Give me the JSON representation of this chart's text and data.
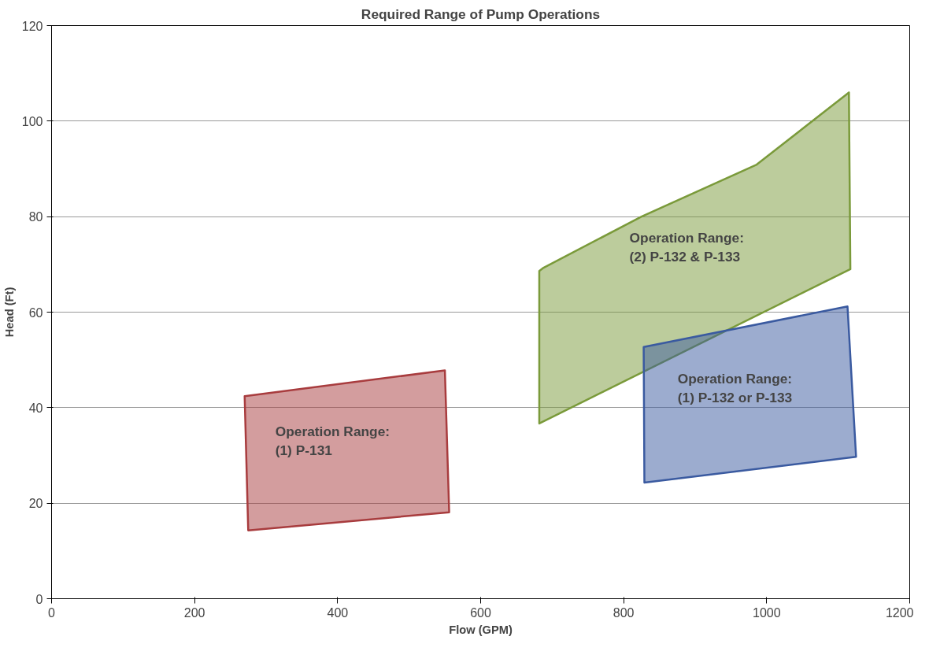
{
  "chart_data": {
    "type": "area",
    "title": "Required Range of Pump Operations",
    "xlabel": "Flow (GPM)",
    "ylabel": "Head (Ft)",
    "xlim": [
      0,
      1200
    ],
    "ylim": [
      0,
      120
    ],
    "xticks": [
      0,
      200,
      400,
      600,
      800,
      1000,
      1200
    ],
    "yticks": [
      0,
      20,
      40,
      60,
      80,
      100,
      120
    ],
    "grid": "y",
    "series": [
      {
        "color": "#a83c3e",
        "x": [
          270,
          550,
          556,
          275,
          270
        ],
        "values": [
          42.4,
          47.8,
          18.1,
          14.3,
          42.4
        ]
      },
      {
        "color": "#7a9a3a",
        "x": [
          682,
          688,
          825,
          986,
          1115,
          1117,
          682,
          682
        ],
        "values": [
          68.6,
          69.3,
          80,
          90.9,
          106,
          69,
          36.7,
          68.6
        ]
      },
      {
        "color": "#3a5aa0",
        "x": [
          828,
          1113,
          1125,
          829,
          828
        ],
        "values": [
          52.7,
          61.2,
          29.7,
          24.3,
          52.7
        ]
      }
    ],
    "annotations": [
      "Operation Range:\n(1) P-131",
      "Operation Range:\n(2) P-132 & P-133",
      "Operation Range:\n(1) P-132 or P-133"
    ]
  }
}
